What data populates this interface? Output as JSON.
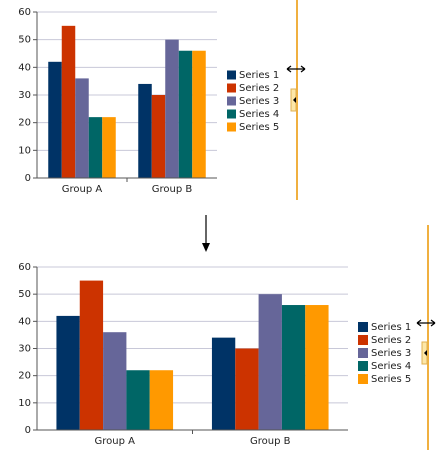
{
  "chart_data": [
    {
      "type": "bar",
      "categories": [
        "Group A",
        "Group B"
      ],
      "series": [
        {
          "name": "Series 1",
          "color": "#003366",
          "values": [
            42,
            34
          ]
        },
        {
          "name": "Series 2",
          "color": "#cc3300",
          "values": [
            55,
            30
          ]
        },
        {
          "name": "Series 3",
          "color": "#666699",
          "values": [
            36,
            50
          ]
        },
        {
          "name": "Series 4",
          "color": "#006666",
          "values": [
            22,
            46
          ]
        },
        {
          "name": "Series 5",
          "color": "#ff9900",
          "values": [
            22,
            46
          ]
        }
      ],
      "ylim": [
        0,
        60
      ],
      "yticks": [
        0,
        10,
        20,
        30,
        40,
        50,
        60
      ],
      "grid": true,
      "legend": "right"
    },
    {
      "type": "bar",
      "categories": [
        "Group A",
        "Group B"
      ],
      "series": [
        {
          "name": "Series 1",
          "color": "#003366",
          "values": [
            42,
            34
          ]
        },
        {
          "name": "Series 2",
          "color": "#cc3300",
          "values": [
            55,
            30
          ]
        },
        {
          "name": "Series 3",
          "color": "#666699",
          "values": [
            36,
            50
          ]
        },
        {
          "name": "Series 4",
          "color": "#006666",
          "values": [
            22,
            46
          ]
        },
        {
          "name": "Series 5",
          "color": "#ff9900",
          "values": [
            22,
            46
          ]
        }
      ],
      "ylim": [
        0,
        60
      ],
      "yticks": [
        0,
        10,
        20,
        30,
        40,
        50,
        60
      ],
      "grid": true,
      "legend": "right"
    }
  ]
}
